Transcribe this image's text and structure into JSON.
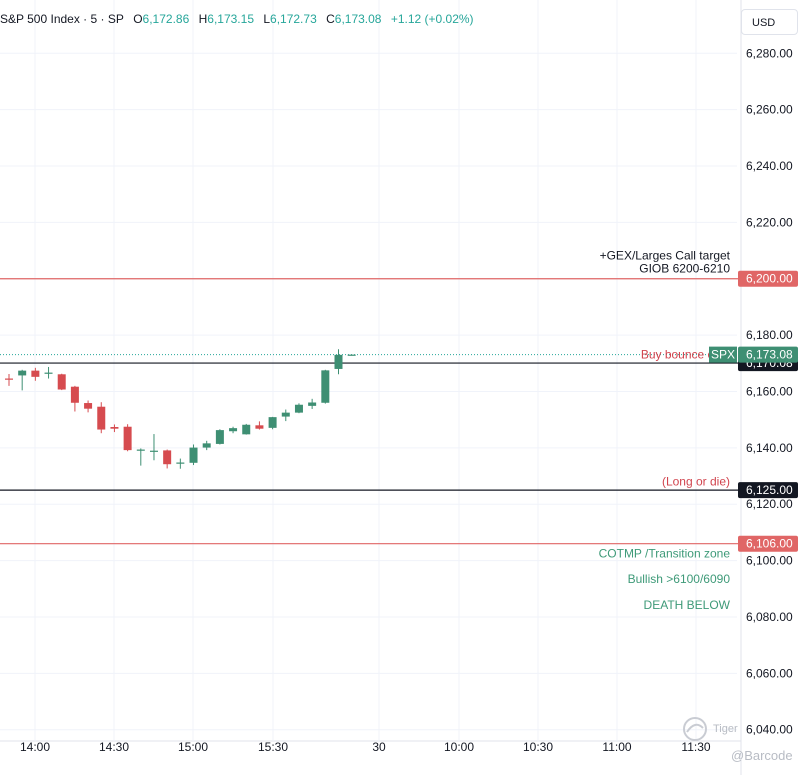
{
  "header": {
    "symbol": "S&P 500 Index · 5 · SP",
    "open_label": "O",
    "open": "6,172.86",
    "high_label": "H",
    "high": "6,173.15",
    "low_label": "L",
    "low": "6,172.73",
    "close_label": "C",
    "close": "6,173.08",
    "change": "+1.12 (+0.02%)"
  },
  "currency_button": "USD",
  "watermark": {
    "brand": "Tiger",
    "handle": "@Barcode"
  },
  "colors": {
    "up": "#26a69a",
    "up_body": "#3e8f73",
    "down": "#ef5350",
    "down_body": "#d64b4f",
    "red_line": "#e06666",
    "black_line": "#131722",
    "annotation_red": "#d1444e",
    "annotation_green": "#3e9a78",
    "grid": "#f0f3fa",
    "axis_text": "#131722"
  },
  "chart_data": {
    "type": "candlestick",
    "title": "S&P 500 Index · 5 · SP",
    "timeframe": "5",
    "ylim": [
      6036,
      6294
    ],
    "y_ticks": [
      6040,
      6060,
      6080,
      6100,
      6120,
      6140,
      6160,
      6180,
      6200,
      6220,
      6240,
      6260,
      6280
    ],
    "y_tick_labels": [
      "6,040.00",
      "6,060.00",
      "6,080.00",
      "6,100.00",
      "6,120.00",
      "6,140.00",
      "6,160.00",
      "6,180.00",
      "6,200.00",
      "6,220.00",
      "6,240.00",
      "6,260.00",
      "6,280.00"
    ],
    "x_tick_labels": [
      "14:00",
      "14:30",
      "15:00",
      "15:30",
      "30",
      "10:00",
      "10:30",
      "11:00",
      "11:30"
    ],
    "grid": true,
    "candles": [
      {
        "o": 6164.6,
        "h": 6166.2,
        "l": 6162.0,
        "c": 6164.3
      },
      {
        "o": 6165.7,
        "h": 6167.7,
        "l": 6160.4,
        "c": 6167.4
      },
      {
        "o": 6167.4,
        "h": 6168.4,
        "l": 6163.8,
        "c": 6165.2
      },
      {
        "o": 6166.5,
        "h": 6168.7,
        "l": 6164.6,
        "c": 6166.7
      },
      {
        "o": 6166.1,
        "h": 6166.3,
        "l": 6160.5,
        "c": 6160.7
      },
      {
        "o": 6161.7,
        "h": 6162.0,
        "l": 6152.9,
        "c": 6156.0
      },
      {
        "o": 6155.9,
        "h": 6156.8,
        "l": 6152.6,
        "c": 6153.9
      },
      {
        "o": 6154.6,
        "h": 6156.2,
        "l": 6145.2,
        "c": 6146.5
      },
      {
        "o": 6147.4,
        "h": 6148.3,
        "l": 6145.6,
        "c": 6146.8
      },
      {
        "o": 6147.5,
        "h": 6148.4,
        "l": 6138.8,
        "c": 6139.2
      },
      {
        "o": 6139.4,
        "h": 6139.8,
        "l": 6133.7,
        "c": 6139.4
      },
      {
        "o": 6138.6,
        "h": 6144.9,
        "l": 6135.6,
        "c": 6139.0
      },
      {
        "o": 6139.1,
        "h": 6139.4,
        "l": 6132.7,
        "c": 6134.2
      },
      {
        "o": 6134.8,
        "h": 6136.2,
        "l": 6132.6,
        "c": 6134.8
      },
      {
        "o": 6134.7,
        "h": 6141.2,
        "l": 6133.9,
        "c": 6140.1
      },
      {
        "o": 6140.1,
        "h": 6142.5,
        "l": 6139.2,
        "c": 6141.6
      },
      {
        "o": 6141.4,
        "h": 6146.6,
        "l": 6141.2,
        "c": 6146.3
      },
      {
        "o": 6145.9,
        "h": 6147.5,
        "l": 6145.2,
        "c": 6147.0
      },
      {
        "o": 6144.8,
        "h": 6148.5,
        "l": 6144.7,
        "c": 6148.2
      },
      {
        "o": 6148.0,
        "h": 6149.4,
        "l": 6146.5,
        "c": 6146.8
      },
      {
        "o": 6147.1,
        "h": 6151.0,
        "l": 6146.6,
        "c": 6150.9
      },
      {
        "o": 6151.1,
        "h": 6153.6,
        "l": 6149.5,
        "c": 6152.5
      },
      {
        "o": 6152.5,
        "h": 6155.8,
        "l": 6152.3,
        "c": 6155.3
      },
      {
        "o": 6154.9,
        "h": 6157.4,
        "l": 6153.8,
        "c": 6156.1
      },
      {
        "o": 6156.0,
        "h": 6167.7,
        "l": 6155.7,
        "c": 6167.5
      },
      {
        "o": 6168.0,
        "h": 6175.0,
        "l": 6166.1,
        "c": 6173.0
      },
      {
        "o": 6172.86,
        "h": 6173.15,
        "l": 6172.73,
        "c": 6173.08
      }
    ],
    "horizontal_lines": [
      {
        "value": 6200.0,
        "label": "6,200.00",
        "color": "#e06666"
      },
      {
        "value": 6170.08,
        "label": "6,170.08",
        "color": "#131722"
      },
      {
        "value": 6125.0,
        "label": "6,125.00",
        "color": "#131722"
      },
      {
        "value": 6106.0,
        "label": "6,106.00",
        "color": "#e06666"
      }
    ],
    "price_line": {
      "value": 6173.08,
      "symbol": "SPX",
      "label": "6,173.08"
    },
    "annotations": [
      {
        "text": "+GEX/Larges Call target",
        "value": 6208.2,
        "color": "#131722"
      },
      {
        "text": "GIOB 6200-6210",
        "value": 6203.6,
        "color": "#131722"
      },
      {
        "text": "Buy bounce off z",
        "value": 6173.1,
        "color": "#d1444e"
      },
      {
        "text": "(Long or die)",
        "value": 6128.0,
        "color": "#d1444e"
      },
      {
        "text": "COTMP /Transition zone",
        "value": 6102.5,
        "color": "#3e9a78"
      },
      {
        "text": "Bullish >6100/6090",
        "value": 6093.4,
        "color": "#3e9a78"
      },
      {
        "text": "DEATH BELOW",
        "value": 6084.3,
        "color": "#3e9a78"
      }
    ]
  }
}
